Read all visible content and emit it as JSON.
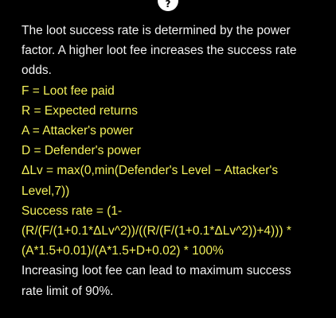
{
  "help_icon": {
    "glyph": "?"
  },
  "intro": "The loot success rate is determined by the power factor. A higher loot fee increases the success rate odds.",
  "definitions": [
    "F = Loot fee paid",
    "R = Expected returns",
    "A = Attacker's power",
    "D = Defender's power",
    "ΔLv = max(0,min(Defender's Level − Attacker's Level,7))"
  ],
  "formula": "Success rate = (1-(R/(F/(1+0.1*ΔLv^2))/((R/(F/(1+0.1*ΔLv^2))+4))) * (A*1.5+0.01)/(A*1.5+D+0.02) * 100%",
  "note": "Increasing loot fee can lead to maximum success rate limit of 90%.",
  "colors": {
    "background": "#000000",
    "text": "#f2f2f2",
    "highlight": "#f3f05a",
    "icon_bg": "#ffffff"
  }
}
